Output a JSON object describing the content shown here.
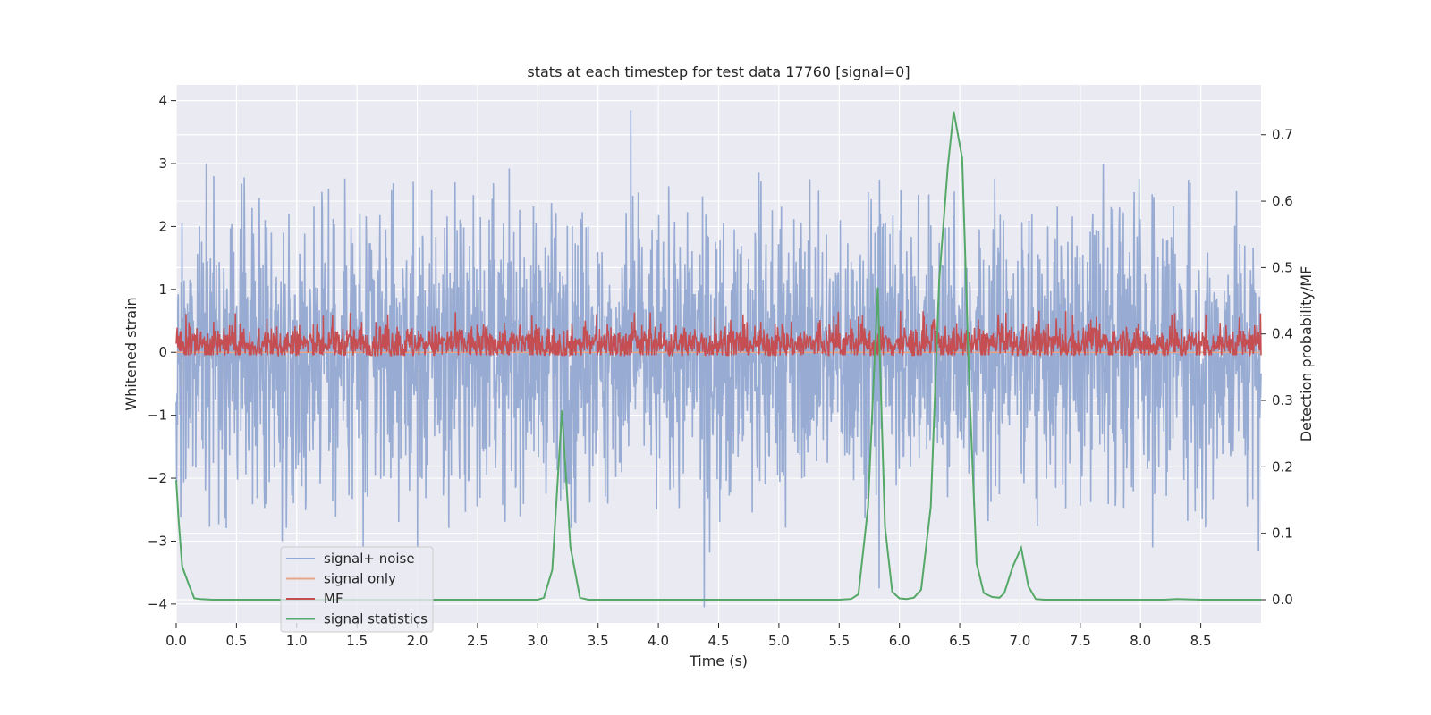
{
  "chart_data": {
    "type": "line",
    "title": "stats at each timestep for test data 17760 [signal=0]",
    "xlabel": "Time (s)",
    "ylabel": "Whitened strain",
    "y2label": "Detection probability/MF",
    "xlim": [
      0,
      9.0
    ],
    "ylim": [
      -4.3,
      4.25
    ],
    "y2lim": [
      -0.035,
      0.775
    ],
    "xticks": [
      0.0,
      0.5,
      1.0,
      1.5,
      2.0,
      2.5,
      3.0,
      3.5,
      4.0,
      4.5,
      5.0,
      5.5,
      6.0,
      6.5,
      7.0,
      7.5,
      8.0,
      8.5
    ],
    "xtick_labels": [
      "0.0",
      "0.5",
      "1.0",
      "1.5",
      "2.0",
      "2.5",
      "3.0",
      "3.5",
      "4.0",
      "4.5",
      "5.0",
      "5.5",
      "6.0",
      "6.5",
      "7.0",
      "7.5",
      "8.0",
      "8.5"
    ],
    "yticks": [
      4,
      3,
      2,
      1,
      0,
      -1,
      -2,
      -3,
      -4
    ],
    "ytick_labels": [
      "4",
      "3",
      "2",
      "1",
      "0",
      "−1",
      "−2",
      "−3",
      "−4"
    ],
    "y2ticks": [
      0.7,
      0.6,
      0.5,
      0.4,
      0.3,
      0.2,
      0.1,
      0.0
    ],
    "y2tick_labels": [
      "0.7",
      "0.6",
      "0.5",
      "0.4",
      "0.3",
      "0.2",
      "0.1",
      "0.0"
    ],
    "grid": true,
    "legend_position": "lower-left",
    "series": [
      {
        "name": "signal+ noise",
        "axis": "left",
        "color": "#92a8d1",
        "kind": "noise",
        "amplitude_typical": 1.2,
        "amplitude_peak": 3.0,
        "spikes": [
          [
            0.25,
            3.0
          ],
          [
            3.77,
            3.85
          ],
          [
            4.38,
            -4.05
          ],
          [
            5.83,
            -3.75
          ],
          [
            1.55,
            -3.1
          ],
          [
            2.0,
            -3.1
          ],
          [
            0.88,
            -3.0
          ],
          [
            8.1,
            -3.1
          ],
          [
            8.98,
            -3.15
          ]
        ]
      },
      {
        "name": "signal only",
        "axis": "left",
        "color": "#e8a487",
        "x": [
          0.0,
          9.0
        ],
        "y": [
          0.0,
          0.0
        ]
      },
      {
        "name": "MF",
        "axis": "right",
        "color": "#c44e52",
        "kind": "noise",
        "baseline": 0.385,
        "amplitude": 0.025,
        "peak": 0.42
      },
      {
        "name": "signal statistics",
        "axis": "right",
        "color": "#55a868",
        "x": [
          0.0,
          0.02,
          0.05,
          0.1,
          0.15,
          0.2,
          0.3,
          0.5,
          1.0,
          2.0,
          2.8,
          3.0,
          3.05,
          3.12,
          3.2,
          3.27,
          3.35,
          3.42,
          3.5,
          4.0,
          5.0,
          5.5,
          5.6,
          5.66,
          5.74,
          5.82,
          5.88,
          5.94,
          6.0,
          6.06,
          6.12,
          6.18,
          6.26,
          6.33,
          6.4,
          6.45,
          6.52,
          6.58,
          6.64,
          6.7,
          6.77,
          6.83,
          6.87,
          6.94,
          7.01,
          7.07,
          7.13,
          7.2,
          7.5,
          8.0,
          8.2,
          8.3,
          8.5,
          9.0
        ],
        "y": [
          0.18,
          0.12,
          0.05,
          0.025,
          0.002,
          0.001,
          0.0,
          0.0,
          0.0,
          0.0,
          0.0,
          0.0,
          0.003,
          0.045,
          0.285,
          0.08,
          0.003,
          0.0,
          0.0,
          0.0,
          0.0,
          0.0,
          0.001,
          0.008,
          0.14,
          0.47,
          0.11,
          0.012,
          0.002,
          0.001,
          0.003,
          0.015,
          0.14,
          0.48,
          0.65,
          0.735,
          0.665,
          0.32,
          0.055,
          0.01,
          0.004,
          0.003,
          0.01,
          0.05,
          0.078,
          0.02,
          0.001,
          0.0,
          0.0,
          0.0,
          0.0,
          0.001,
          0.0,
          0.0
        ]
      }
    ]
  }
}
